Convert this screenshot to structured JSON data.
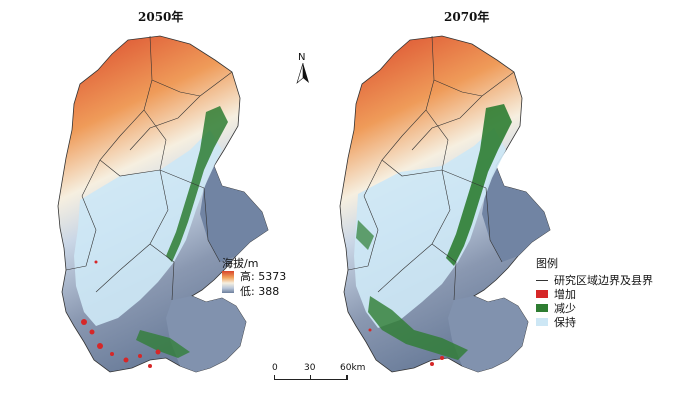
{
  "maps": [
    {
      "title": "2050年"
    },
    {
      "title": "2070年"
    }
  ],
  "north_arrow": {
    "label": "N"
  },
  "elevation_legend": {
    "title": "海拔/m",
    "high_label": "高: 5373",
    "low_label": "低: 388"
  },
  "scale_bar": {
    "labels": [
      "0",
      "30",
      "60km"
    ]
  },
  "legend": {
    "title": "图例",
    "items": [
      {
        "label": "研究区域边界及县界",
        "symbol": "line",
        "color": "#333333"
      },
      {
        "label": "增加",
        "symbol": "patch",
        "color": "#d62728"
      },
      {
        "label": "减少",
        "symbol": "patch",
        "color": "#2e7d32"
      },
      {
        "label": "保持",
        "symbol": "patch",
        "color": "#cde7f5"
      }
    ]
  },
  "colors": {
    "high": "#d9442a",
    "mid": "#f6efe0",
    "low": "#6d7f9c",
    "increase": "#d62728",
    "decrease": "#2e7d32",
    "keep": "#cde7f5"
  }
}
